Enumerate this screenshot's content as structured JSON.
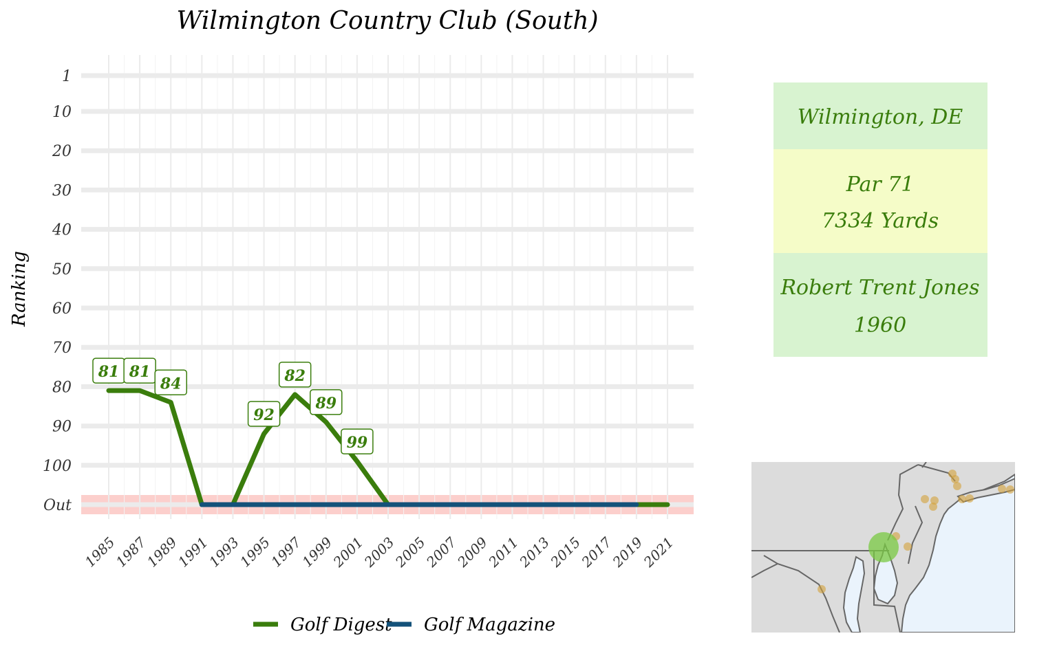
{
  "chart_data": {
    "type": "line",
    "title": "Wilmington Country Club (South)",
    "xlabel": "",
    "ylabel": "Ranking",
    "y_ticks": [
      "1",
      "10",
      "20",
      "30",
      "40",
      "50",
      "60",
      "70",
      "80",
      "90",
      "100",
      "Out"
    ],
    "y_tick_values": [
      1,
      10,
      20,
      30,
      40,
      50,
      60,
      70,
      80,
      90,
      100,
      110
    ],
    "ylim": [
      1,
      110
    ],
    "y_reversed": true,
    "x_ticks": [
      "1985",
      "1987",
      "1989",
      "1991",
      "1993",
      "1995",
      "1997",
      "1999",
      "2001",
      "2003",
      "2005",
      "2007",
      "2009",
      "2011",
      "2013",
      "2015",
      "2017",
      "2019",
      "2021"
    ],
    "xlim": [
      1984,
      2023
    ],
    "out_band": {
      "label": "Out",
      "color": "#fccfcc"
    },
    "grid": true,
    "legend_position": "bottom",
    "series": [
      {
        "name": "Golf Digest",
        "color": "#3a7d0c",
        "points": [
          {
            "x": 1985,
            "y": 81,
            "label": "81"
          },
          {
            "x": 1987,
            "y": 81,
            "label": "81"
          },
          {
            "x": 1989,
            "y": 84,
            "label": "84"
          },
          {
            "x": 1991,
            "y": "Out"
          },
          {
            "x": 1993,
            "y": "Out"
          },
          {
            "x": 1995,
            "y": 92,
            "label": "92"
          },
          {
            "x": 1997,
            "y": 82,
            "label": "82"
          },
          {
            "x": 1999,
            "y": 89,
            "label": "89"
          },
          {
            "x": 2001,
            "y": 99,
            "label": "99"
          },
          {
            "x": 2003,
            "y": "Out"
          },
          {
            "x": 2021,
            "y": "Out"
          }
        ]
      },
      {
        "name": "Golf Magazine",
        "color": "#14527a",
        "points": [
          {
            "x": 1991,
            "y": "Out"
          },
          {
            "x": 2019,
            "y": "Out"
          }
        ]
      }
    ]
  },
  "info_panel": {
    "location": "Wilmington, DE",
    "par": "Par 71",
    "yards": "7334 Yards",
    "architect": "Robert Trent Jones",
    "year": "1960",
    "colors": {
      "green_bg": "#d8f3d0",
      "yellow_bg": "#f5fcc8",
      "text": "#3a7d0c"
    }
  },
  "map": {
    "description_icon": "regional-map",
    "land_color": "#dcdcdc",
    "water_color": "#eaf3fc",
    "marker_color": "#7ac943",
    "other_marker_color": "#d4a13a"
  }
}
